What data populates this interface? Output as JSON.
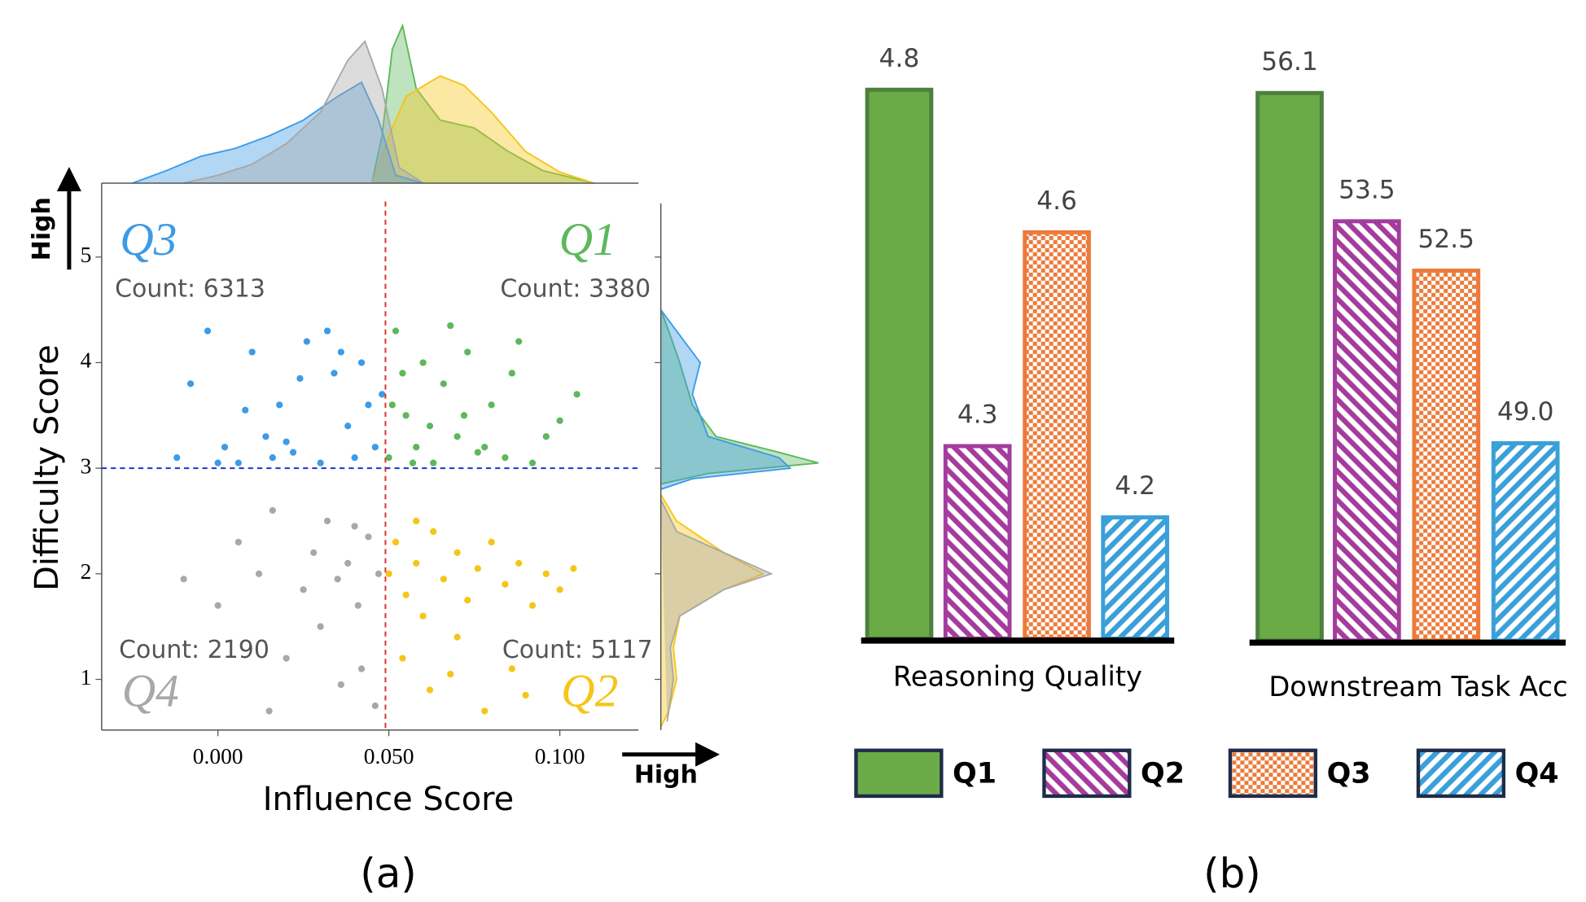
{
  "chart_data": [
    {
      "type": "scatter",
      "xlabel": "Influence Score",
      "ylabel": "Difficulty Score",
      "caption": "(a)",
      "x_high_label": "High",
      "y_high_label": "High",
      "xlim": [
        -0.034,
        0.123
      ],
      "ylim": [
        0.52,
        5.7
      ],
      "xticks": [
        {
          "value": 0,
          "label": "0.000"
        },
        {
          "value": 0.05,
          "label": "0.050"
        },
        {
          "value": 0.1,
          "label": "0.100"
        }
      ],
      "yticks": [
        1,
        2,
        3,
        4,
        5
      ],
      "threshold_x": 0.049,
      "threshold_y": 3,
      "series": [
        {
          "name": "Q1",
          "color": "#5cb85c",
          "count_label": "Count: 3380",
          "x": [
            0.05,
            0.052,
            0.055,
            0.058,
            0.06,
            0.063,
            0.066,
            0.07,
            0.073,
            0.076,
            0.08,
            0.084,
            0.088,
            0.092,
            0.096,
            0.1,
            0.105,
            0.054,
            0.062,
            0.068,
            0.078,
            0.086,
            0.051,
            0.057,
            0.072
          ],
          "y": [
            3.1,
            4.3,
            3.5,
            3.2,
            4.0,
            3.05,
            3.8,
            3.3,
            4.1,
            3.15,
            3.6,
            3.1,
            4.2,
            3.05,
            3.3,
            3.45,
            3.7,
            3.9,
            3.4,
            4.35,
            3.2,
            3.9,
            3.6,
            3.05,
            3.5
          ],
          "top_density": {
            "x": [
              0.045,
              0.048,
              0.051,
              0.054,
              0.058,
              0.065,
              0.075,
              0.085,
              0.095,
              0.11
            ],
            "values": [
              0,
              0.3,
              0.85,
              1.0,
              0.6,
              0.4,
              0.35,
              0.2,
              0.08,
              0
            ]
          },
          "right_density": {
            "y": [
              4.5,
              4.3,
              4.0,
              3.6,
              3.3,
              3.15,
              3.05,
              2.95,
              2.85
            ],
            "values": [
              0,
              0.05,
              0.12,
              0.2,
              0.35,
              0.75,
              1.0,
              0.3,
              0
            ]
          }
        },
        {
          "name": "Q2",
          "color": "#f5c518",
          "count_label": "Count: 5117",
          "x": [
            0.05,
            0.052,
            0.055,
            0.058,
            0.06,
            0.063,
            0.066,
            0.07,
            0.073,
            0.076,
            0.08,
            0.084,
            0.088,
            0.092,
            0.096,
            0.1,
            0.104,
            0.054,
            0.062,
            0.068,
            0.078,
            0.086,
            0.058,
            0.07,
            0.09
          ],
          "y": [
            2.0,
            2.3,
            1.8,
            2.1,
            1.6,
            2.4,
            1.95,
            2.2,
            1.75,
            2.05,
            2.3,
            1.9,
            2.1,
            1.7,
            2.0,
            1.85,
            2.05,
            1.2,
            0.9,
            1.05,
            0.7,
            1.1,
            2.5,
            1.4,
            0.85
          ],
          "top_density": {
            "x": [
              0.045,
              0.05,
              0.055,
              0.065,
              0.072,
              0.08,
              0.09,
              0.1,
              0.11
            ],
            "values": [
              0,
              0.3,
              0.55,
              0.68,
              0.62,
              0.45,
              0.2,
              0.07,
              0
            ]
          },
          "right_density": {
            "y": [
              2.75,
              2.5,
              2.2,
              2.0,
              1.85,
              1.6,
              1.3,
              1.0,
              0.7,
              0.55
            ],
            "values": [
              0,
              0.1,
              0.4,
              0.65,
              0.4,
              0.12,
              0.08,
              0.1,
              0.05,
              0
            ]
          }
        },
        {
          "name": "Q3",
          "color": "#3d9be6",
          "count_label": "Count: 6313",
          "x": [
            -0.012,
            -0.008,
            -0.003,
            0.002,
            0.006,
            0.01,
            0.014,
            0.018,
            0.022,
            0.026,
            0.03,
            0.034,
            0.038,
            0.042,
            0.046,
            0.048,
            0.0,
            0.008,
            0.016,
            0.024,
            0.032,
            0.04,
            0.044,
            0.02,
            0.036
          ],
          "y": [
            3.1,
            3.8,
            4.3,
            3.2,
            3.05,
            4.1,
            3.3,
            3.6,
            3.15,
            4.2,
            3.05,
            3.9,
            3.4,
            4.0,
            3.2,
            3.7,
            3.05,
            3.55,
            3.1,
            3.85,
            4.3,
            3.1,
            3.6,
            3.25,
            4.1
          ],
          "top_density": {
            "x": [
              -0.025,
              -0.015,
              -0.005,
              0.005,
              0.015,
              0.025,
              0.035,
              0.042,
              0.047,
              0.052,
              0.06
            ],
            "values": [
              0,
              0.08,
              0.17,
              0.22,
              0.3,
              0.4,
              0.55,
              0.64,
              0.4,
              0.05,
              0
            ]
          },
          "right_density": {
            "y": [
              4.5,
              4.3,
              4.0,
              3.7,
              3.3,
              3.1,
              3.0,
              2.9,
              2.8
            ],
            "values": [
              0,
              0.1,
              0.25,
              0.2,
              0.3,
              0.75,
              0.82,
              0.2,
              0
            ]
          }
        },
        {
          "name": "Q4",
          "color": "#a8a8a8",
          "count_label": "Count: 2190",
          "x": [
            -0.01,
            0.0,
            0.006,
            0.012,
            0.016,
            0.02,
            0.025,
            0.028,
            0.032,
            0.035,
            0.038,
            0.041,
            0.044,
            0.047,
            0.03,
            0.036,
            0.042,
            0.046,
            0.015,
            0.04
          ],
          "y": [
            1.95,
            1.7,
            2.3,
            2.0,
            2.6,
            1.2,
            1.85,
            2.2,
            2.5,
            1.95,
            2.1,
            1.7,
            2.35,
            2.0,
            1.5,
            0.95,
            1.1,
            0.75,
            0.7,
            2.45
          ],
          "top_density": {
            "x": [
              -0.01,
              0.0,
              0.01,
              0.02,
              0.03,
              0.038,
              0.043,
              0.048,
              0.053,
              0.06
            ],
            "values": [
              0,
              0.05,
              0.12,
              0.25,
              0.45,
              0.78,
              0.9,
              0.6,
              0.1,
              0
            ]
          },
          "right_density": {
            "y": [
              2.7,
              2.4,
              2.2,
              2.0,
              1.85,
              1.6,
              1.3,
              1.0,
              0.6
            ],
            "values": [
              0,
              0.1,
              0.4,
              0.7,
              0.4,
              0.12,
              0.06,
              0.08,
              0.04
            ]
          }
        }
      ]
    },
    {
      "type": "bar",
      "caption": "(b)",
      "series": [
        {
          "name": "Q1",
          "color": "#6aab48",
          "border": "#4e7f3c",
          "pattern": "solid"
        },
        {
          "name": "Q2",
          "color": "#a33c9c",
          "border": "#a33c9c",
          "pattern": "back-diagonal"
        },
        {
          "name": "Q3",
          "color": "#ec7a3a",
          "border": "#ec7a3a",
          "pattern": "dots"
        },
        {
          "name": "Q4",
          "color": "#3aa0d8",
          "border": "#3aa0d8",
          "pattern": "diagonal"
        }
      ],
      "panels": [
        {
          "label": "Reasoning Quality",
          "ylim": [
            4.03,
            4.92
          ],
          "values": [
            4.8,
            4.3,
            4.6,
            4.2
          ]
        },
        {
          "label": "Downstream Task Acc",
          "ylim": [
            45,
            57.9
          ],
          "values": [
            56.1,
            53.5,
            52.5,
            49.0
          ],
          "value_labels": [
            "56.1",
            "53.5",
            "52.5",
            "49.0"
          ]
        }
      ]
    }
  ]
}
